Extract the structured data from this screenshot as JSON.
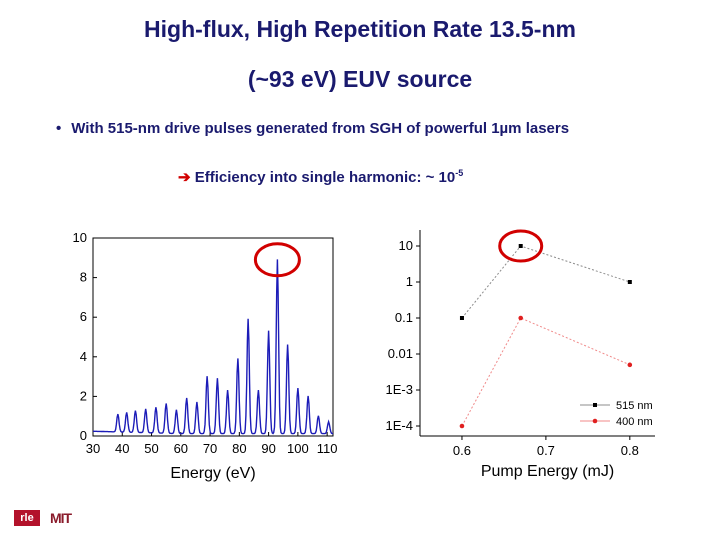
{
  "slide": {
    "title_line1": "High-flux, High Repetition Rate 13.5-nm",
    "title_line2": "(~93 eV) EUV source",
    "bullet": "With 515-nm drive pulses generated from SGH of powerful 1µm lasers",
    "efficiency_text": "Efficiency into single harmonic: ~ 10",
    "efficiency_exponent": "-5",
    "logo_left": "rle",
    "logo_right": "MIT"
  },
  "chart_data": [
    {
      "type": "line",
      "xlabel": "Energy (eV)",
      "ylabel": "",
      "x_ticks": [
        "30",
        "40",
        "50",
        "60",
        "70",
        "80",
        "90",
        "100",
        "110"
      ],
      "y_ticks": [
        "0",
        "2",
        "4",
        "6",
        "8",
        "10"
      ],
      "xlim": [
        30,
        112
      ],
      "ylim": [
        0,
        10
      ],
      "highlight_circle": "peak near 93 eV",
      "peaks": {
        "x": [
          38.5,
          41.5,
          44.5,
          48,
          51.5,
          55,
          58.5,
          62,
          65.5,
          69,
          72.5,
          76,
          79.5,
          83,
          86.5,
          90,
          93,
          96.5,
          100,
          103.5,
          107,
          110.5
        ],
        "y": [
          0.9,
          1.0,
          1.1,
          1.2,
          1.3,
          1.5,
          1.2,
          1.8,
          1.6,
          2.9,
          2.8,
          2.2,
          3.8,
          5.8,
          2.2,
          5.2,
          8.8,
          4.5,
          2.3,
          1.9,
          0.9,
          0.6
        ]
      }
    },
    {
      "type": "line",
      "xlabel": "Pump Energy (mJ)",
      "ylabel": "",
      "y_scale": "log",
      "x_ticks": [
        "0.6",
        "0.7",
        "0.8"
      ],
      "y_ticks": [
        "1E-4",
        "1E-3",
        "0.01",
        "0.1",
        "1",
        "10"
      ],
      "xlim": [
        0.55,
        0.83
      ],
      "ylim": [
        0.0001,
        10
      ],
      "legend_placement": "bottom-right",
      "highlight_circle": "515 nm point at 0.67 mJ",
      "series": [
        {
          "name": "515 nm",
          "color": "#000000",
          "x": [
            0.6,
            0.67,
            0.8
          ],
          "y": [
            0.1,
            10,
            1
          ]
        },
        {
          "name": "400 nm",
          "color": "#e02020",
          "x": [
            0.6,
            0.67,
            0.8
          ],
          "y": [
            0.0001,
            0.1,
            0.005
          ]
        }
      ]
    }
  ]
}
